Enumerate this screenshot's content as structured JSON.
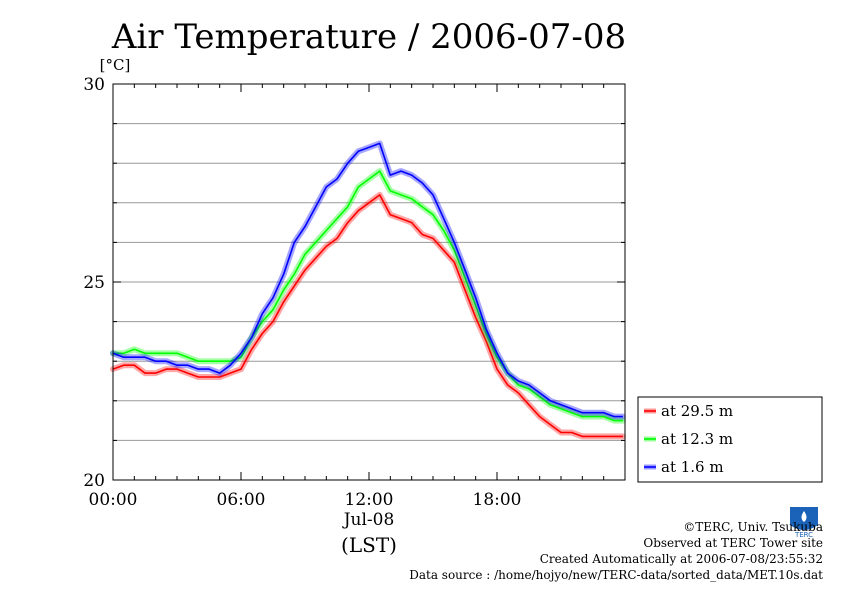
{
  "chart_data": {
    "type": "line",
    "title": "Air Temperature / 2006-07-08",
    "ylabel": "[°C]",
    "ylim": [
      20,
      30
    ],
    "y_ticks": [
      "20",
      "25",
      "30"
    ],
    "xlim_hours": [
      0,
      24
    ],
    "x_ticks": [
      "00:00",
      "06:00",
      "12:00",
      "18:00"
    ],
    "x_date_label": "Jul-08",
    "x_unit_label": "(LST)",
    "grid": "horizontal",
    "legend_position": "bottom-right outside",
    "series": [
      {
        "name": "at 29.5 m",
        "color": "#ff0000",
        "x": [
          0,
          0.5,
          1,
          1.5,
          2,
          2.5,
          3,
          3.5,
          4,
          4.5,
          5,
          5.5,
          6,
          6.5,
          7,
          7.5,
          8,
          8.5,
          9,
          9.5,
          10,
          10.5,
          11,
          11.5,
          12,
          12.5,
          13,
          13.5,
          14,
          14.5,
          15,
          15.5,
          16,
          16.5,
          17,
          17.5,
          18,
          18.5,
          19,
          19.5,
          20,
          20.5,
          21,
          21.5,
          22,
          22.5,
          23,
          23.5,
          23.9
        ],
        "y": [
          22.8,
          22.9,
          22.9,
          22.7,
          22.7,
          22.8,
          22.8,
          22.7,
          22.6,
          22.6,
          22.6,
          22.7,
          22.8,
          23.3,
          23.7,
          24,
          24.5,
          24.9,
          25.3,
          25.6,
          25.9,
          26.1,
          26.5,
          26.8,
          27,
          27.2,
          26.7,
          26.6,
          26.5,
          26.2,
          26.1,
          25.8,
          25.5,
          24.8,
          24.1,
          23.5,
          22.8,
          22.4,
          22.2,
          21.9,
          21.6,
          21.4,
          21.2,
          21.2,
          21.1,
          21.1,
          21.1,
          21.1,
          21.1
        ]
      },
      {
        "name": "at 12.3 m",
        "color": "#00ff00",
        "x": [
          0,
          0.5,
          1,
          1.5,
          2,
          2.5,
          3,
          3.5,
          4,
          4.5,
          5,
          5.5,
          6,
          6.5,
          7,
          7.5,
          8,
          8.5,
          9,
          9.5,
          10,
          10.5,
          11,
          11.5,
          12,
          12.5,
          13,
          13.5,
          14,
          14.5,
          15,
          15.5,
          16,
          16.5,
          17,
          17.5,
          18,
          18.5,
          19,
          19.5,
          20,
          20.5,
          21,
          21.5,
          22,
          22.5,
          23,
          23.5,
          23.9
        ],
        "y": [
          23.2,
          23.2,
          23.3,
          23.2,
          23.2,
          23.2,
          23.2,
          23.1,
          23,
          23,
          23,
          23,
          23.1,
          23.6,
          24,
          24.3,
          24.8,
          25.2,
          25.7,
          26,
          26.3,
          26.6,
          26.9,
          27.4,
          27.6,
          27.8,
          27.3,
          27.2,
          27.1,
          26.9,
          26.7,
          26.3,
          25.8,
          25.1,
          24.4,
          23.7,
          23.1,
          22.7,
          22.4,
          22.3,
          22.1,
          21.9,
          21.8,
          21.7,
          21.6,
          21.6,
          21.6,
          21.5,
          21.5
        ]
      },
      {
        "name": "at 1.6 m",
        "color": "#0000ff",
        "x": [
          0,
          0.5,
          1,
          1.5,
          2,
          2.5,
          3,
          3.5,
          4,
          4.5,
          5,
          5.5,
          6,
          6.5,
          7,
          7.5,
          8,
          8.5,
          9,
          9.5,
          10,
          10.5,
          11,
          11.5,
          12,
          12.5,
          13,
          13.5,
          14,
          14.5,
          15,
          15.5,
          16,
          16.5,
          17,
          17.5,
          18,
          18.5,
          19,
          19.5,
          20,
          20.5,
          21,
          21.5,
          22,
          22.5,
          23,
          23.5,
          23.9
        ],
        "y": [
          23.2,
          23.1,
          23.1,
          23.1,
          23,
          23,
          22.9,
          22.9,
          22.8,
          22.8,
          22.7,
          22.9,
          23.2,
          23.6,
          24.2,
          24.6,
          25.2,
          26,
          26.4,
          26.9,
          27.4,
          27.6,
          28,
          28.3,
          28.4,
          28.5,
          27.7,
          27.8,
          27.7,
          27.5,
          27.2,
          26.6,
          26,
          25.3,
          24.6,
          23.8,
          23.2,
          22.7,
          22.5,
          22.4,
          22.2,
          22,
          21.9,
          21.8,
          21.7,
          21.7,
          21.7,
          21.6,
          21.6
        ]
      }
    ]
  },
  "credits": {
    "copyright": "©TERC, Univ. Tsukuba",
    "observed": "Observed at TERC Tower site",
    "created": "Created Automatically at 2006-07-08/23:55:32",
    "source": "Data source : /home/hojyo/new/TERC-data/sorted_data/MET.10s.dat"
  },
  "logo": {
    "text": "TERC",
    "color": "#1a63b8"
  }
}
